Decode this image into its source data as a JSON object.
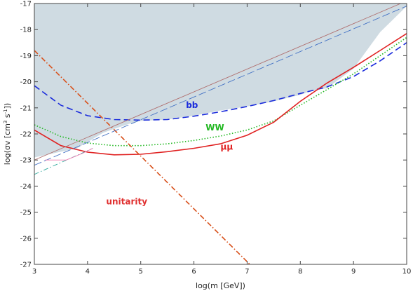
{
  "chart_data": {
    "type": "line",
    "title": "",
    "xlabel": "log(m [GeV])",
    "ylabel_parts": {
      "pre": "log(σv [cm",
      "sup1": "3",
      "mid": " s",
      "sup2": "-1",
      "post": "])"
    },
    "xlim": [
      3,
      10
    ],
    "ylim": [
      -27,
      -17
    ],
    "grid": false,
    "x_ticks": [
      "3",
      "4",
      "5",
      "6",
      "7",
      "8",
      "9",
      "10"
    ],
    "y_ticks": [
      "-17",
      "-18",
      "-19",
      "-20",
      "-21",
      "-22",
      "-23",
      "-24",
      "-25",
      "-26",
      "-27"
    ],
    "excluded_region": {
      "color": "#cfdbe2",
      "boundary": [
        [
          3,
          -22.9
        ],
        [
          3.8,
          -22.55
        ],
        [
          4.3,
          -21.95
        ],
        [
          4.8,
          -21.6
        ],
        [
          5.0,
          -21.5
        ],
        [
          5.5,
          -21.45
        ],
        [
          6.0,
          -21.3
        ],
        [
          6.5,
          -21.1
        ],
        [
          7.0,
          -20.95
        ],
        [
          7.5,
          -20.75
        ],
        [
          8.0,
          -20.5
        ],
        [
          8.2,
          -20.35
        ],
        [
          8.5,
          -20.25
        ],
        [
          9.0,
          -19.5
        ],
        [
          9.5,
          -18.1
        ],
        [
          10,
          -17.1
        ]
      ]
    },
    "series": [
      {
        "label": "bb",
        "color": "#1a2bdc",
        "style": "dashed",
        "points": [
          [
            3,
            -20.15
          ],
          [
            3.5,
            -20.9
          ],
          [
            4.0,
            -21.3
          ],
          [
            4.5,
            -21.45
          ],
          [
            5.0,
            -21.47
          ],
          [
            5.5,
            -21.45
          ],
          [
            6.0,
            -21.32
          ],
          [
            6.5,
            -21.15
          ],
          [
            7.0,
            -20.95
          ],
          [
            7.5,
            -20.72
          ],
          [
            8.0,
            -20.45
          ],
          [
            8.5,
            -20.2
          ],
          [
            9.0,
            -19.8
          ],
          [
            9.5,
            -19.2
          ],
          [
            10,
            -18.5
          ]
        ]
      },
      {
        "label": "WW",
        "color": "#22b822",
        "style": "dotted",
        "points": [
          [
            3,
            -21.65
          ],
          [
            3.5,
            -22.1
          ],
          [
            4.0,
            -22.35
          ],
          [
            4.5,
            -22.45
          ],
          [
            5.0,
            -22.45
          ],
          [
            5.5,
            -22.38
          ],
          [
            6.0,
            -22.25
          ],
          [
            6.5,
            -22.08
          ],
          [
            7.0,
            -21.85
          ],
          [
            7.5,
            -21.5
          ],
          [
            8.0,
            -20.9
          ],
          [
            8.5,
            -20.3
          ],
          [
            9.0,
            -19.7
          ],
          [
            9.5,
            -19.0
          ],
          [
            10,
            -18.3
          ]
        ]
      },
      {
        "label": "μμ",
        "color": "#e02222",
        "style": "solid",
        "points": [
          [
            3,
            -21.85
          ],
          [
            3.5,
            -22.45
          ],
          [
            4.0,
            -22.7
          ],
          [
            4.5,
            -22.8
          ],
          [
            5.0,
            -22.78
          ],
          [
            5.5,
            -22.68
          ],
          [
            6.0,
            -22.55
          ],
          [
            6.5,
            -22.38
          ],
          [
            7.0,
            -22.05
          ],
          [
            7.5,
            -21.55
          ],
          [
            8.0,
            -20.75
          ],
          [
            8.5,
            -20.05
          ],
          [
            9.0,
            -19.45
          ],
          [
            9.5,
            -18.8
          ],
          [
            10,
            -18.15
          ]
        ]
      },
      {
        "label": "unitarity",
        "color": "#d8501a",
        "style": "dashdot",
        "points": [
          [
            3,
            -18.8
          ],
          [
            7.1,
            -27.1
          ]
        ]
      },
      {
        "label": "",
        "color": "#b07070",
        "style": "solid",
        "points": [
          [
            3,
            -23.0
          ],
          [
            10,
            -16.9
          ]
        ]
      },
      {
        "label": "",
        "color": "#4472c4",
        "style": "longdash",
        "points": [
          [
            3,
            -23.2
          ],
          [
            10,
            -17.1
          ]
        ]
      },
      {
        "label": "",
        "color": "#2aa89a",
        "style": "dashdot",
        "points": [
          [
            3,
            -23.55
          ],
          [
            4.1,
            -22.55
          ]
        ]
      },
      {
        "label": "",
        "color": "#f07ab0",
        "style": "solid",
        "points": [
          [
            3.2,
            -23.0
          ],
          [
            3.6,
            -23.0
          ],
          [
            3.9,
            -22.75
          ],
          [
            4.1,
            -22.55
          ]
        ]
      }
    ],
    "annotations": [
      {
        "text": "bb",
        "color": "#1a2bdc",
        "x": 5.85,
        "y": -21.0
      },
      {
        "text": "WW",
        "color": "#22b822",
        "x": 6.22,
        "y": -21.87
      },
      {
        "text": "μμ",
        "color": "#e02222",
        "x": 6.5,
        "y": -22.6
      },
      {
        "text": "unitarity",
        "color": "#e03030",
        "x": 4.35,
        "y": -24.7
      }
    ]
  }
}
